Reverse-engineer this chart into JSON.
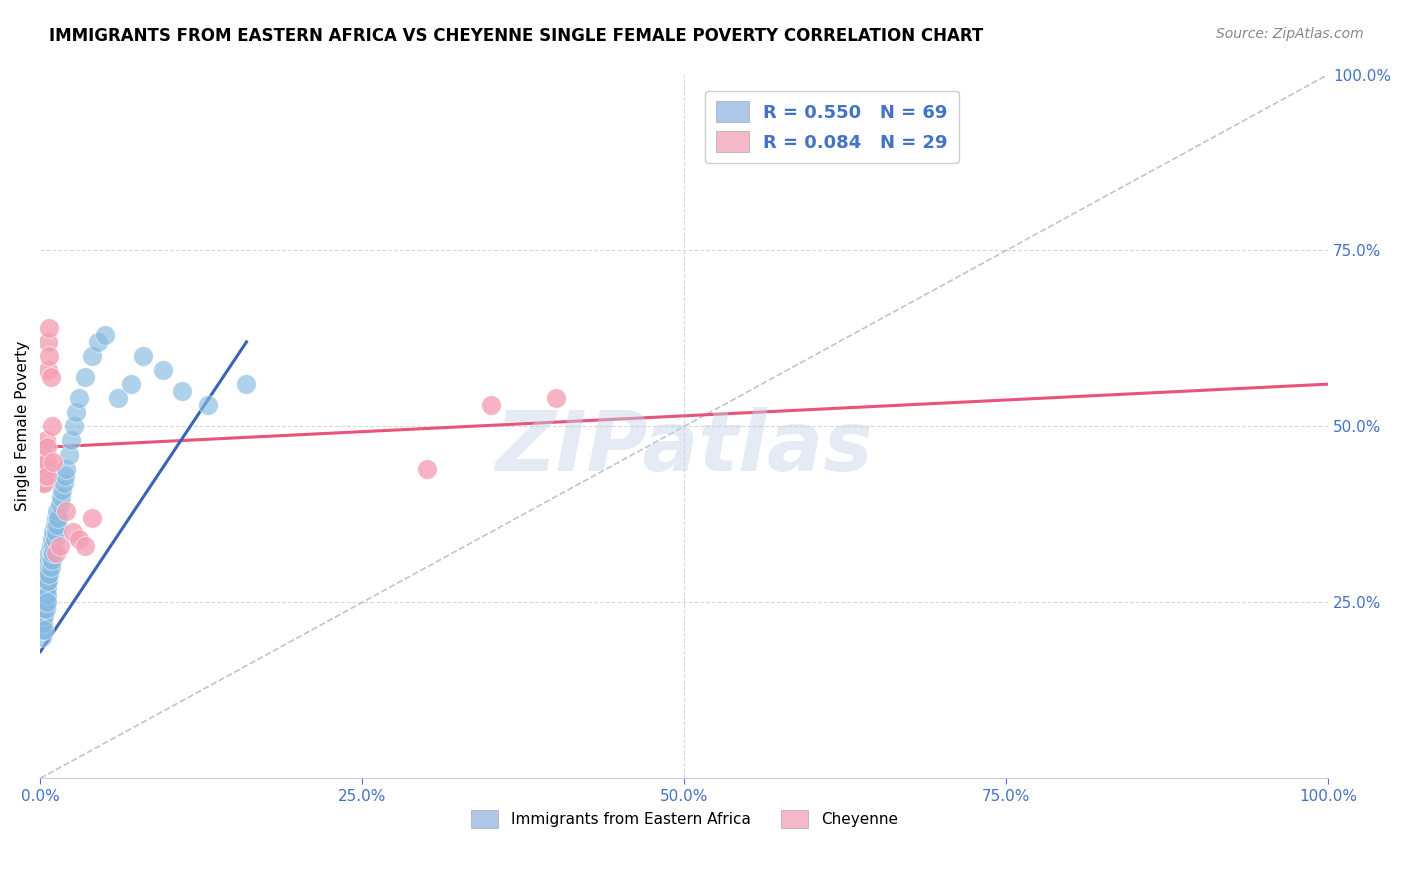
{
  "title": "IMMIGRANTS FROM EASTERN AFRICA VS CHEYENNE SINGLE FEMALE POVERTY CORRELATION CHART",
  "source": "Source: ZipAtlas.com",
  "ylabel": "Single Female Poverty",
  "xlim": [
    0,
    1
  ],
  "ylim": [
    0,
    1
  ],
  "watermark": "ZIPatlas",
  "blue_scatter_x": [
    0.001,
    0.001,
    0.001,
    0.002,
    0.002,
    0.002,
    0.002,
    0.003,
    0.003,
    0.003,
    0.003,
    0.003,
    0.003,
    0.004,
    0.004,
    0.004,
    0.004,
    0.004,
    0.005,
    0.005,
    0.005,
    0.005,
    0.005,
    0.005,
    0.006,
    0.006,
    0.006,
    0.007,
    0.007,
    0.007,
    0.007,
    0.008,
    0.008,
    0.008,
    0.009,
    0.009,
    0.009,
    0.01,
    0.01,
    0.01,
    0.011,
    0.011,
    0.012,
    0.012,
    0.013,
    0.013,
    0.014,
    0.015,
    0.016,
    0.017,
    0.018,
    0.019,
    0.02,
    0.022,
    0.024,
    0.026,
    0.028,
    0.03,
    0.035,
    0.04,
    0.045,
    0.05,
    0.06,
    0.07,
    0.08,
    0.095,
    0.11,
    0.13,
    0.16
  ],
  "blue_scatter_y": [
    0.2,
    0.22,
    0.21,
    0.24,
    0.23,
    0.22,
    0.25,
    0.23,
    0.24,
    0.26,
    0.25,
    0.27,
    0.21,
    0.26,
    0.28,
    0.25,
    0.27,
    0.24,
    0.27,
    0.29,
    0.28,
    0.3,
    0.26,
    0.25,
    0.29,
    0.31,
    0.28,
    0.3,
    0.32,
    0.29,
    0.31,
    0.31,
    0.33,
    0.3,
    0.32,
    0.34,
    0.31,
    0.33,
    0.35,
    0.32,
    0.34,
    0.36,
    0.35,
    0.37,
    0.36,
    0.38,
    0.37,
    0.39,
    0.4,
    0.41,
    0.42,
    0.43,
    0.44,
    0.46,
    0.48,
    0.5,
    0.52,
    0.54,
    0.57,
    0.6,
    0.62,
    0.63,
    0.54,
    0.56,
    0.6,
    0.58,
    0.55,
    0.53,
    0.56
  ],
  "pink_scatter_x": [
    0.001,
    0.001,
    0.002,
    0.002,
    0.003,
    0.003,
    0.003,
    0.004,
    0.004,
    0.005,
    0.005,
    0.005,
    0.006,
    0.006,
    0.007,
    0.007,
    0.008,
    0.009,
    0.01,
    0.012,
    0.015,
    0.02,
    0.025,
    0.03,
    0.035,
    0.04,
    0.3,
    0.35,
    0.4
  ],
  "pink_scatter_y": [
    0.42,
    0.45,
    0.44,
    0.47,
    0.42,
    0.46,
    0.43,
    0.48,
    0.44,
    0.45,
    0.47,
    0.43,
    0.58,
    0.62,
    0.64,
    0.6,
    0.57,
    0.5,
    0.45,
    0.32,
    0.33,
    0.38,
    0.35,
    0.34,
    0.33,
    0.37,
    0.44,
    0.53,
    0.54
  ],
  "blue_trend_x": [
    0.0,
    0.16
  ],
  "blue_trend_y": [
    0.18,
    0.62
  ],
  "pink_trend_x": [
    0.0,
    1.0
  ],
  "pink_trend_y": [
    0.47,
    0.56
  ],
  "diag_line_x": [
    0.0,
    1.0
  ],
  "diag_line_y": [
    0.0,
    1.0
  ],
  "blue_color": "#85b9e0",
  "pink_color": "#f4a0b5",
  "blue_trend_color": "#3a63b8",
  "pink_trend_color": "#e8547a",
  "diag_color": "#b0bcc8",
  "grid_color": "#d8d8d8",
  "title_fontsize": 12,
  "source_fontsize": 10,
  "axis_label_fontsize": 11,
  "tick_fontsize": 11,
  "watermark_color": "#c5d3e8",
  "watermark_alpha": 0.45,
  "watermark_fontsize": 60
}
